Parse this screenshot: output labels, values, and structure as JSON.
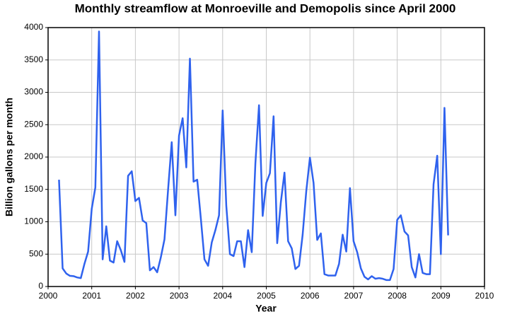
{
  "chart_data": {
    "type": "line",
    "title": "Monthly streamflow at Monroeville and Demopolis since April 2000",
    "x_label": "Year",
    "y_label": "Billion gallons per month",
    "x": [
      2000.25,
      2000.333,
      2000.417,
      2000.5,
      2000.583,
      2000.667,
      2000.75,
      2000.833,
      2000.917,
      2001.0,
      2001.083,
      2001.167,
      2001.25,
      2001.333,
      2001.417,
      2001.5,
      2001.583,
      2001.667,
      2001.75,
      2001.833,
      2001.917,
      2002.0,
      2002.083,
      2002.167,
      2002.25,
      2002.333,
      2002.417,
      2002.5,
      2002.583,
      2002.667,
      2002.75,
      2002.833,
      2002.917,
      2003.0,
      2003.083,
      2003.167,
      2003.25,
      2003.333,
      2003.417,
      2003.5,
      2003.583,
      2003.667,
      2003.75,
      2003.833,
      2003.917,
      2004.0,
      2004.083,
      2004.167,
      2004.25,
      2004.333,
      2004.417,
      2004.5,
      2004.583,
      2004.667,
      2004.75,
      2004.833,
      2004.917,
      2005.0,
      2005.083,
      2005.167,
      2005.25,
      2005.333,
      2005.417,
      2005.5,
      2005.583,
      2005.667,
      2005.75,
      2005.833,
      2005.917,
      2006.0,
      2006.083,
      2006.167,
      2006.25,
      2006.333,
      2006.417,
      2006.5,
      2006.583,
      2006.667,
      2006.75,
      2006.833,
      2006.917,
      2007.0,
      2007.083,
      2007.167,
      2007.25,
      2007.333,
      2007.417,
      2007.5,
      2007.583,
      2007.667,
      2007.75,
      2007.833,
      2007.917,
      2008.0,
      2008.083,
      2008.167,
      2008.25,
      2008.333,
      2008.417,
      2008.5,
      2008.583,
      2008.667,
      2008.75,
      2008.833,
      2008.917,
      2009.0,
      2009.083,
      2009.167
    ],
    "series": [
      {
        "name": "Streamflow",
        "color": "#2f62ee",
        "values": [
          1650,
          280,
          200,
          165,
          160,
          140,
          130,
          350,
          540,
          1200,
          1530,
          3940,
          420,
          930,
          400,
          370,
          700,
          560,
          380,
          1710,
          1780,
          1320,
          1370,
          1020,
          980,
          250,
          300,
          220,
          450,
          730,
          1500,
          2230,
          1100,
          2330,
          2600,
          1840,
          3520,
          1620,
          1650,
          1050,
          420,
          320,
          680,
          870,
          1100,
          2720,
          1250,
          500,
          470,
          700,
          700,
          300,
          870,
          530,
          1900,
          2800,
          1090,
          1600,
          1750,
          2630,
          670,
          1300,
          1760,
          700,
          590,
          270,
          320,
          800,
          1480,
          1990,
          1600,
          720,
          820,
          190,
          170,
          170,
          170,
          350,
          800,
          540,
          1520,
          700,
          530,
          280,
          150,
          110,
          160,
          120,
          130,
          120,
          100,
          100,
          270,
          1030,
          1100,
          850,
          790,
          300,
          140,
          500,
          210,
          190,
          190,
          1580,
          2020,
          500,
          2760,
          790
        ]
      }
    ],
    "xlim": [
      2000,
      2010
    ],
    "xticks": [
      2000,
      2001,
      2002,
      2003,
      2004,
      2005,
      2006,
      2007,
      2008,
      2009,
      2010
    ],
    "ylim": [
      0,
      4000
    ],
    "yticks": [
      0,
      500,
      1000,
      1500,
      2000,
      2500,
      3000,
      3500,
      4000
    ],
    "grid": true
  }
}
